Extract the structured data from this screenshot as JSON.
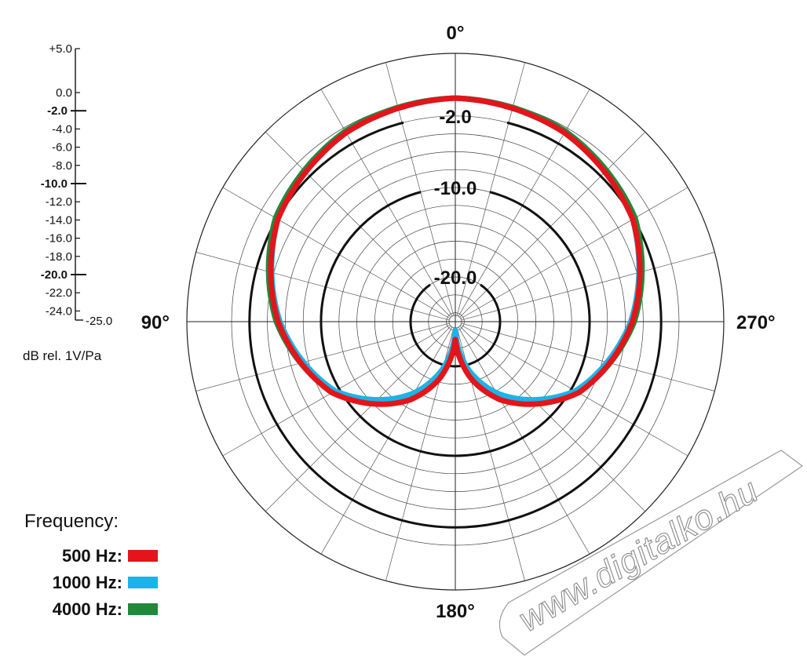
{
  "chart_data": {
    "type": "polar",
    "title": "",
    "unit_label": "dB rel. 1V/Pa",
    "angle_labels": [
      "0°",
      "90°",
      "180°",
      "270°"
    ],
    "ring_labels": [
      "-2.0",
      "-10.0",
      "-20.0"
    ],
    "scale_labels": [
      "+5.0",
      "0.0",
      "-2.0",
      "-4.0",
      "-6.0",
      "-8.0",
      "-10.0",
      "-12.0",
      "-14.0",
      "-16.0",
      "-18.0",
      "-20.0",
      "-22.0",
      "-24.0",
      "-25.0"
    ],
    "scale_major": [
      "-2.0",
      "-10.0",
      "-20.0"
    ],
    "r_range_db": [
      -25,
      5
    ],
    "angle_grid_step_deg": 15,
    "legend": {
      "title": "Frequency:",
      "entries": [
        {
          "label": "500 Hz:",
          "color": "#e3151a"
        },
        {
          "label": "1000 Hz:",
          "color": "#1cb3e8"
        },
        {
          "label": "4000 Hz:",
          "color": "#1e8a3a"
        }
      ]
    },
    "series": [
      {
        "name": "500 Hz",
        "color": "#e3151a",
        "angles_deg": [
          0,
          30,
          60,
          90,
          120,
          150,
          165,
          180
        ],
        "db": [
          0,
          -0.6,
          -2.1,
          -5.2,
          -9.1,
          -14.9,
          -18.5,
          -23.0
        ]
      },
      {
        "name": "1000 Hz",
        "color": "#1cb3e8",
        "angles_deg": [
          0,
          30,
          60,
          90,
          120,
          150,
          165,
          180
        ],
        "db": [
          0,
          -0.6,
          -2.1,
          -5.4,
          -9.5,
          -15.8,
          -19.5,
          -24.0
        ]
      },
      {
        "name": "4000 Hz",
        "color": "#1e8a3a",
        "angles_deg": [
          0,
          30,
          60,
          90,
          120,
          150,
          165,
          180
        ],
        "db": [
          0,
          -0.4,
          -1.8,
          -5.0,
          -9.2,
          -15.5,
          -19.2,
          -24.0
        ]
      }
    ]
  },
  "watermark": "www.digitalko.hu"
}
